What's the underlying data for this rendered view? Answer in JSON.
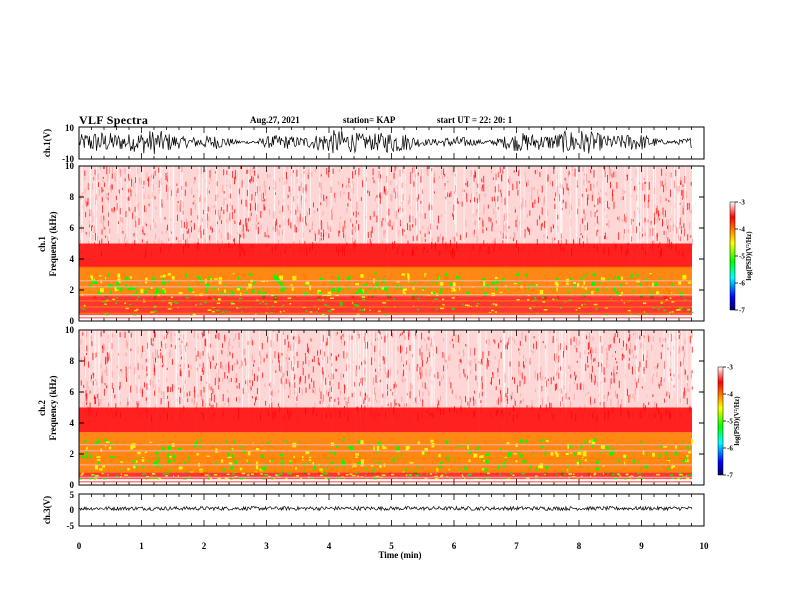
{
  "header": {
    "title": "VLF Spectra",
    "date": "Aug.27, 2021",
    "station": "station= KAP",
    "start_ut": "start  UT  =   22: 20: 1"
  },
  "colors": {
    "red": "#ff0000",
    "orange": "#ff8000",
    "yellow": "#ffff00",
    "green": "#00ff00",
    "cyan": "#00ffff",
    "blue": "#0000ff",
    "navy": "#000066",
    "trace": "#000000"
  },
  "chart_data": [
    {
      "type": "line",
      "name": "ch1-waveform",
      "ylabel": "ch.1(V)",
      "ylim": [
        -10,
        10
      ],
      "yticks": [
        "10",
        "-10"
      ],
      "xlim": [
        0,
        10
      ]
    },
    {
      "type": "heatmap",
      "name": "ch1-spectrogram",
      "ylabel": "ch.1\nFrequency  (kHz)",
      "ylim": [
        0,
        10
      ],
      "yticks": [
        "0",
        "2",
        "4",
        "6",
        "8",
        "10"
      ],
      "xlim": [
        0,
        10
      ],
      "colorbar": {
        "label": "log(PSD)(V²/Hz)",
        "range": [
          -7,
          -3
        ],
        "ticks": [
          "-3",
          "-4",
          "-5",
          "-6",
          "-7"
        ]
      }
    },
    {
      "type": "heatmap",
      "name": "ch2-spectrogram",
      "ylabel": "ch.2\nFrequency  (kHz)",
      "ylim": [
        0,
        10
      ],
      "yticks": [
        "0",
        "2",
        "4",
        "6",
        "8",
        "10"
      ],
      "xlim": [
        0,
        10
      ],
      "colorbar": {
        "label": "log(PSD)(V²/Hz)",
        "range": [
          -7,
          -3
        ],
        "ticks": [
          "-3",
          "-4",
          "-5",
          "-6",
          "-7"
        ]
      }
    },
    {
      "type": "line",
      "name": "ch3-waveform",
      "ylabel": "ch.3(V)",
      "ylim": [
        -5,
        5
      ],
      "yticks": [
        "5",
        "0",
        "-5"
      ],
      "xlim": [
        0,
        10
      ],
      "xlabel": "Time  (min)",
      "xticks": [
        "0",
        "1",
        "2",
        "3",
        "4",
        "5",
        "6",
        "7",
        "8",
        "9",
        "10"
      ]
    }
  ]
}
